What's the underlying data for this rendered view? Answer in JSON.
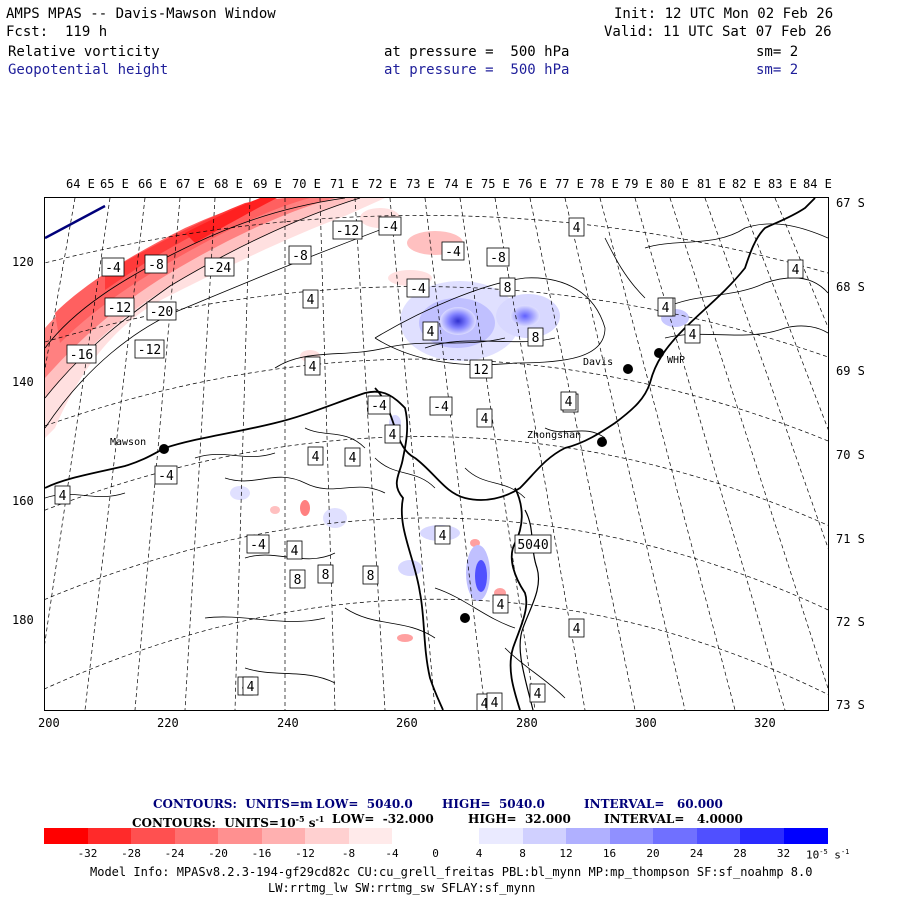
{
  "header": {
    "title": "AMPS MPAS -- Davis-Mawson Window",
    "forecast": "Fcst:  119 h",
    "init": "Init: 12 UTC Mon 02 Feb 26",
    "valid": "Valid: 11 UTC Sat 07 Feb 26",
    "field1": {
      "name": "Relative vorticity",
      "level": "at pressure =  500 hPa",
      "sm": "sm= 2"
    },
    "field2": {
      "name": "Geopotential height",
      "level": "at pressure =  500 hPa",
      "sm": "sm= 2"
    }
  },
  "map": {
    "top_lon_labels": [
      "64 E",
      "65 E",
      "66 E",
      "67 E",
      "68 E",
      "69 E",
      "70 E",
      "71 E",
      "72 E",
      "73 E",
      "74 E",
      "75 E",
      "76 E",
      "77 E",
      "78 E",
      "79 E",
      "80 E",
      "81 E",
      "82 E",
      "83 E",
      "84 E"
    ],
    "right_lat_labels": [
      "67 S",
      "68 S",
      "69 S",
      "70 S",
      "71 S",
      "72 S",
      "73 S"
    ],
    "left_y_ticks": [
      "120",
      "140",
      "160",
      "180"
    ],
    "bottom_x_ticks": [
      "200",
      "220",
      "240",
      "260",
      "280",
      "300",
      "320"
    ],
    "stations": [
      {
        "name": "Mawson"
      },
      {
        "name": "Davis"
      },
      {
        "name": "WHP"
      },
      {
        "name": "Zhongshan"
      }
    ],
    "contour_labels": [
      "-4",
      "-8",
      "-24",
      "-12",
      "-20",
      "-16",
      "-12",
      "-8",
      "-12",
      "-4",
      "-4",
      "-8",
      "-4",
      "4",
      "4",
      "-4",
      "4",
      "8",
      "12",
      "8",
      "4",
      "4",
      "8",
      "-4",
      "4",
      "-4",
      "4",
      "4",
      "4",
      "4",
      "-4",
      "4",
      "4",
      "8",
      "8",
      "8",
      "5040",
      "4",
      "4",
      "4",
      "4",
      "4",
      "4",
      "4",
      "4",
      "4",
      "4",
      "4"
    ],
    "colors": {
      "coast": "#000000",
      "grid": "#000000",
      "neg_accent": "#ff0000",
      "pos_accent": "#0000ff"
    }
  },
  "legend": {
    "line1": {
      "label": "CONTOURS:  UNITS=m",
      "low": "LOW=  5040.0",
      "high": "HIGH=  5040.0",
      "interval": "INTERVAL=   60.000"
    },
    "line2": {
      "label": "CONTOURS:  UNITS=10",
      "exp": "-5",
      "unit": " s",
      "unit_exp": "-1",
      "low": "LOW=  -32.000",
      "high": "HIGH=  32.000",
      "interval": "INTERVAL=   4.0000"
    },
    "colorbar_labels": [
      "-32",
      "-28",
      "-24",
      "-20",
      "-16",
      "-12",
      "-8",
      "-4",
      "0",
      "4",
      "8",
      "12",
      "16",
      "20",
      "24",
      "28",
      "32"
    ],
    "colorbar_unit": "10",
    "colorbar_unit_exp": "-5",
    "colorbar_unit_s": " s",
    "colorbar_unit_s_exp": "-1",
    "colors": [
      "#ff0000",
      "#ff3a3a",
      "#ff6060",
      "#ff8080",
      "#ffa0a0",
      "#ffc0c0",
      "#ffe0e0",
      "#ffffff",
      "#ffffff",
      "#e0e0ff",
      "#c0c0ff",
      "#a0a0ff",
      "#8080ff",
      "#6060ff",
      "#3a3aff",
      "#1414ff",
      "#0000ff"
    ]
  },
  "footer": {
    "line1": "Model Info: MPASv8.2.3-194-gf29cd82c CU:cu_grell_freitas PBL:bl_mynn MP:mp_thompson SF:sf_noahmp 8.0",
    "line2": "LW:rrtmg_lw SW:rrtmg_sw SFLAY:sf_mynn"
  }
}
